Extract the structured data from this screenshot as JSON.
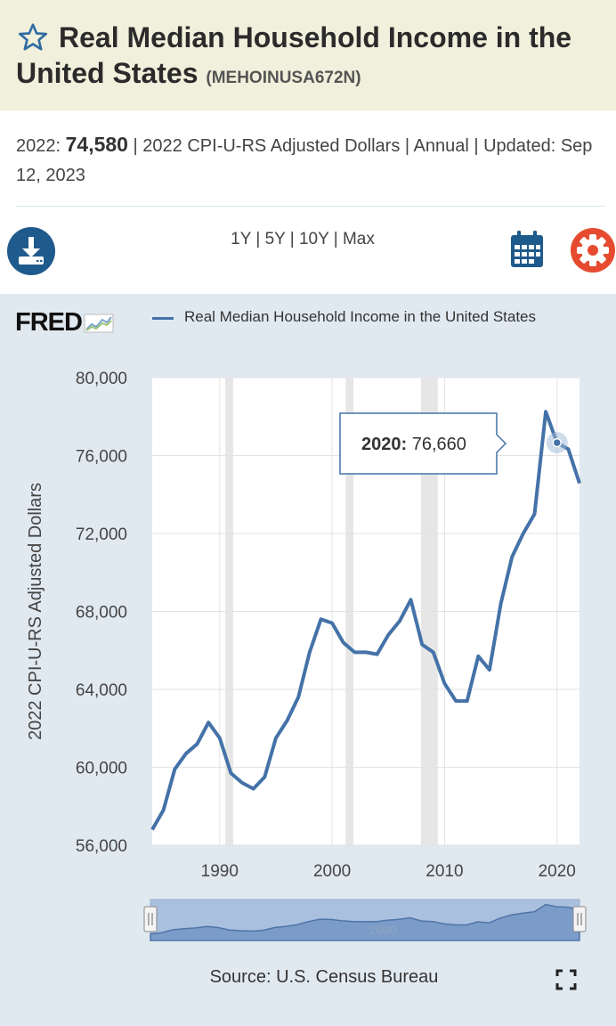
{
  "header": {
    "title": "Real Median Household Income in the United States",
    "series_id": "(MEHOINUSA672N)"
  },
  "meta": {
    "latest_label": "2022:",
    "latest_value": "74,580",
    "details": "| 2022 CPI-U-RS Adjusted Dollars | Annual | Updated:",
    "updated": "Sep 12, 2023"
  },
  "toolbar": {
    "range_1y": "1Y",
    "range_5y": "5Y",
    "range_10y": "10Y",
    "range_max": "Max",
    "download_icon": "download-icon",
    "calendar_icon": "calendar-icon",
    "settings_icon": "gear-icon"
  },
  "brand": {
    "logo": "FRED"
  },
  "legend": {
    "series_label": "Real Median Household Income in the United States"
  },
  "tooltip": {
    "year": "2020:",
    "value": "76,660"
  },
  "navigator": {
    "label": "2000"
  },
  "footer": {
    "source": "Source: U.S. Census Bureau"
  },
  "colors": {
    "line": "#4472a8",
    "recession": "#e6e6e6",
    "header_bg": "#f1f0dc",
    "chart_bg": "#e1e9f0",
    "accent_red": "#e64b2f",
    "accent_blue": "#1f5a8c"
  },
  "chart_data": {
    "type": "line",
    "title": "",
    "xlabel": "",
    "ylabel": "2022 CPI-U-RS Adjusted Dollars",
    "xlim": [
      1984,
      2022
    ],
    "ylim": [
      56000,
      80000
    ],
    "yticks": [
      56000,
      60000,
      64000,
      68000,
      72000,
      76000,
      80000
    ],
    "ytick_labels": [
      "56,000",
      "60,000",
      "64,000",
      "68,000",
      "72,000",
      "76,000",
      "80,000"
    ],
    "xticks": [
      1990,
      2000,
      2010,
      2020
    ],
    "xtick_labels": [
      "1990",
      "2000",
      "2010",
      "2020"
    ],
    "recessions": [
      [
        1990.5,
        1991.2
      ],
      [
        2001.2,
        2001.9
      ],
      [
        2007.9,
        2009.4
      ]
    ],
    "series": [
      {
        "name": "Real Median Household Income in the United States",
        "x": [
          1984,
          1985,
          1986,
          1987,
          1988,
          1989,
          1990,
          1991,
          1992,
          1993,
          1994,
          1995,
          1996,
          1997,
          1998,
          1999,
          2000,
          2001,
          2002,
          2003,
          2004,
          2005,
          2006,
          2007,
          2008,
          2009,
          2010,
          2011,
          2012,
          2013,
          2014,
          2015,
          2016,
          2017,
          2018,
          2019,
          2020,
          2021,
          2022
        ],
        "values": [
          56800,
          57800,
          59900,
          60700,
          61200,
          62300,
          61500,
          59700,
          59200,
          58900,
          59500,
          61500,
          62400,
          63600,
          65900,
          67600,
          67400,
          66400,
          65900,
          65900,
          65800,
          66800,
          67500,
          68600,
          66300,
          65900,
          64300,
          63400,
          63400,
          65700,
          65000,
          68400,
          70800,
          72000,
          73000,
          78250,
          76660,
          76330,
          74580
        ]
      }
    ],
    "highlight": {
      "x": 2020,
      "value": 76660
    },
    "grid": true,
    "legend_position": "top"
  }
}
